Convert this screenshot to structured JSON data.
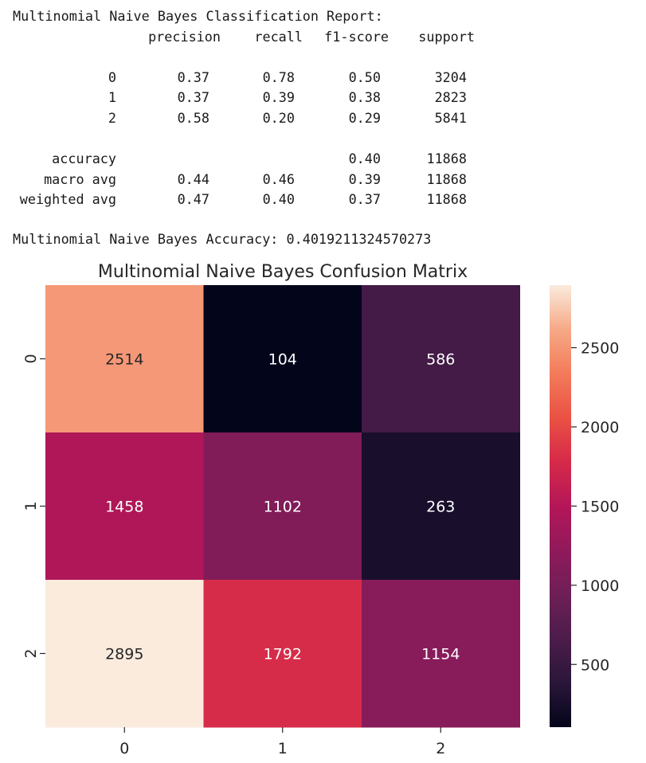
{
  "report": {
    "title": "Multinomial Naive Bayes Classification Report:",
    "headers": [
      "precision",
      "recall",
      "f1-score",
      "support"
    ],
    "class_rows": [
      {
        "label": "0",
        "precision": "0.37",
        "recall": "0.78",
        "f1": "0.50",
        "support": "3204"
      },
      {
        "label": "1",
        "precision": "0.37",
        "recall": "0.39",
        "f1": "0.38",
        "support": "2823"
      },
      {
        "label": "2",
        "precision": "0.58",
        "recall": "0.20",
        "f1": "0.29",
        "support": "5841"
      }
    ],
    "summary_rows": [
      {
        "label": "accuracy",
        "precision": "",
        "recall": "",
        "f1": "0.40",
        "support": "11868"
      },
      {
        "label": "macro avg",
        "precision": "0.44",
        "recall": "0.46",
        "f1": "0.39",
        "support": "11868"
      },
      {
        "label": "weighted avg",
        "precision": "0.47",
        "recall": "0.40",
        "f1": "0.37",
        "support": "11868"
      }
    ],
    "accuracy_line": "Multinomial Naive Bayes Accuracy: 0.4019211324570273"
  },
  "chart_data": {
    "type": "heatmap",
    "title": "Multinomial Naive Bayes Confusion Matrix",
    "x_categories": [
      "0",
      "1",
      "2"
    ],
    "y_categories": [
      "0",
      "1",
      "2"
    ],
    "values": [
      [
        2514,
        104,
        586
      ],
      [
        1458,
        1102,
        263
      ],
      [
        2895,
        1792,
        1154
      ]
    ],
    "colormap": "rocket",
    "color_range": [
      104,
      2895
    ],
    "colorbar_ticks": [
      500,
      1000,
      1500,
      2000,
      2500
    ],
    "xlabel": "",
    "ylabel": ""
  }
}
